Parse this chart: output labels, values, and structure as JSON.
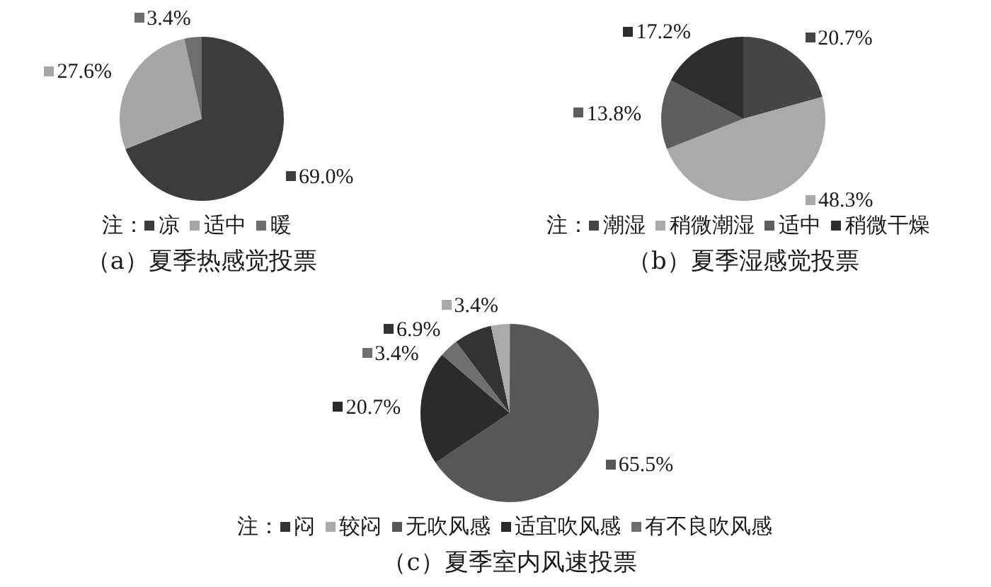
{
  "chart_data": [
    {
      "type": "pie",
      "title": "（a）夏季热感觉投票",
      "legend_title": "注：",
      "legend": "bottom",
      "categories": [
        "凉",
        "适中",
        "暖"
      ],
      "values": [
        69.0,
        27.6,
        3.4
      ],
      "colors": [
        "#3c3c3c",
        "#a6a6a6",
        "#6e6e6e"
      ],
      "value_labels": [
        "69.0%",
        "27.6%",
        "3.4%"
      ]
    },
    {
      "type": "pie",
      "title": "（b）夏季湿感觉投票",
      "legend_title": "注：",
      "legend": "bottom",
      "categories": [
        "潮湿",
        "稍微潮湿",
        "适中",
        "稍微干燥"
      ],
      "values": [
        20.7,
        48.3,
        13.8,
        17.2
      ],
      "colors": [
        "#454545",
        "#aaaaaa",
        "#5e5e5e",
        "#2e2e2e"
      ],
      "value_labels": [
        "20.7%",
        "48.3%",
        "13.8%",
        "17.2%"
      ]
    },
    {
      "type": "pie",
      "title": "（c）夏季室内风速投票",
      "legend_title": "注：",
      "legend": "bottom",
      "categories": [
        "闷",
        "较闷",
        "无吹风感",
        "适宜吹风感",
        "有不良吹风感"
      ],
      "values": [
        6.9,
        3.4,
        65.5,
        20.7,
        3.4
      ],
      "colors": [
        "#333333",
        "#aaaaaa",
        "#575757",
        "#2b2b2b",
        "#6f6f6f"
      ],
      "value_labels": [
        "6.9%",
        "3.4%",
        "65.5%",
        "20.7%",
        "3.4%"
      ]
    }
  ]
}
